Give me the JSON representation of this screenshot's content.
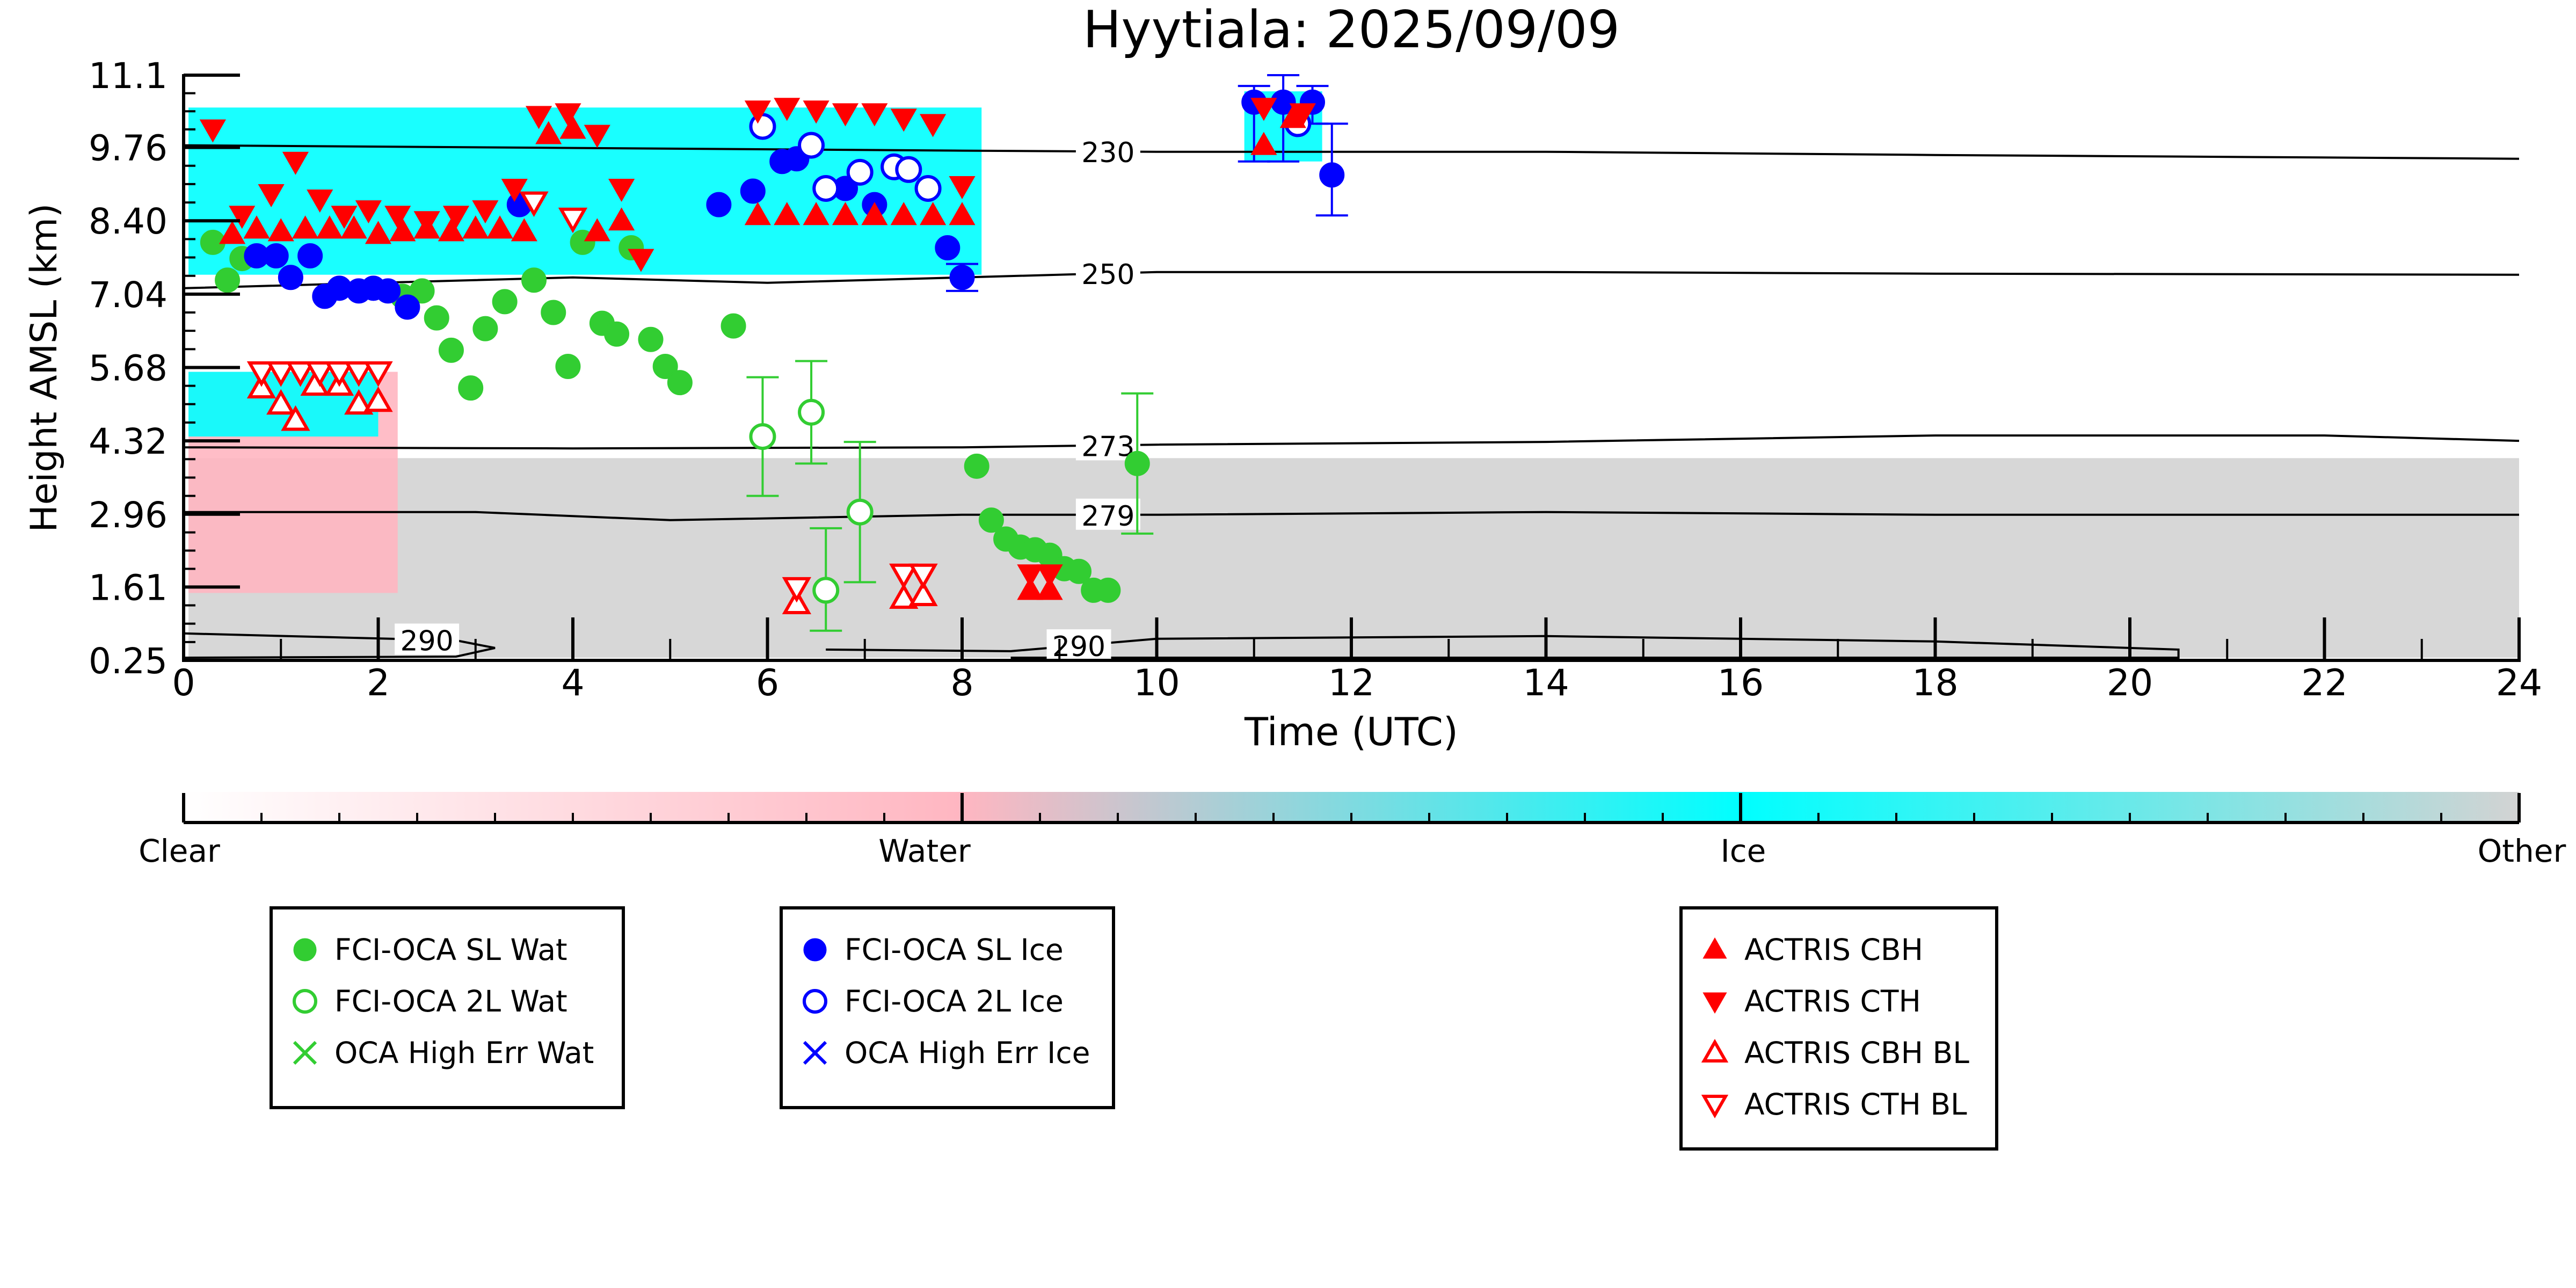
{
  "chart_data": {
    "type": "scatter",
    "title": "Hyytiala: 2025/09/09",
    "xlabel": "Time (UTC)",
    "ylabel": "Height AMSL (km)",
    "xlim": [
      0,
      24
    ],
    "ylim": [
      0.25,
      11.1
    ],
    "x_ticks": [
      0,
      2,
      4,
      6,
      8,
      10,
      12,
      14,
      16,
      18,
      20,
      22,
      24
    ],
    "y_ticks": [
      0.25,
      1.61,
      2.96,
      4.32,
      5.68,
      7.04,
      8.4,
      9.76,
      11.1
    ],
    "y_tick_labels": [
      "0.25",
      "1.61",
      "2.96",
      "4.32",
      "5.68",
      "7.04",
      "8.40",
      "9.76",
      "11.1"
    ],
    "grid": false,
    "colorbar": {
      "labels": [
        "Clear",
        "Water",
        "Ice",
        "Other"
      ],
      "colors": [
        "#ffffff",
        "#ffb6c1",
        "#00ffff",
        "#d3d3d3"
      ]
    },
    "background_classes": [
      {
        "class": "Other",
        "color": "#d3d3d3",
        "x": [
          0.05,
          24.0
        ],
        "y": [
          0.3,
          4.0
        ]
      },
      {
        "class": "Water",
        "color": "#ffb6c1",
        "x": [
          0.05,
          2.2
        ],
        "y": [
          1.5,
          5.6
        ]
      },
      {
        "class": "Ice",
        "color": "#00ffff",
        "x": [
          0.05,
          8.2
        ],
        "y": [
          7.4,
          10.5
        ]
      },
      {
        "class": "Ice",
        "color": "#00ffff",
        "x": [
          0.05,
          2.0
        ],
        "y": [
          4.4,
          5.6
        ]
      },
      {
        "class": "Ice",
        "color": "#00ffff",
        "x": [
          10.9,
          11.7
        ],
        "y": [
          9.5,
          10.8
        ]
      }
    ],
    "isotherms": [
      {
        "label": "230",
        "label_x": 9.5,
        "points": [
          [
            0,
            9.8
          ],
          [
            4,
            9.75
          ],
          [
            8,
            9.7
          ],
          [
            10,
            9.68
          ],
          [
            14,
            9.68
          ],
          [
            18,
            9.62
          ],
          [
            24,
            9.55
          ]
        ]
      },
      {
        "label": "250",
        "label_x": 9.5,
        "points": [
          [
            0,
            7.15
          ],
          [
            4,
            7.35
          ],
          [
            6,
            7.25
          ],
          [
            8,
            7.35
          ],
          [
            10,
            7.45
          ],
          [
            14,
            7.45
          ],
          [
            18,
            7.42
          ],
          [
            24,
            7.4
          ]
        ]
      },
      {
        "label": "273",
        "label_x": 9.5,
        "points": [
          [
            0,
            4.2
          ],
          [
            4,
            4.18
          ],
          [
            8,
            4.2
          ],
          [
            10,
            4.25
          ],
          [
            14,
            4.3
          ],
          [
            18,
            4.42
          ],
          [
            22,
            4.42
          ],
          [
            24,
            4.32
          ]
        ]
      },
      {
        "label": "279",
        "label_x": 9.5,
        "points": [
          [
            0,
            3.0
          ],
          [
            3,
            3.0
          ],
          [
            5,
            2.85
          ],
          [
            8,
            2.95
          ],
          [
            10,
            2.95
          ],
          [
            14,
            3.0
          ],
          [
            18,
            2.95
          ],
          [
            24,
            2.95
          ]
        ]
      },
      {
        "label": "290",
        "label_x": 2.5,
        "points": [
          [
            0,
            0.75
          ],
          [
            1.5,
            0.68
          ],
          [
            2.8,
            0.62
          ],
          [
            3.2,
            0.48
          ],
          [
            2.8,
            0.32
          ],
          [
            0,
            0.3
          ]
        ]
      },
      {
        "label": "290",
        "label_x": 9.2,
        "points": [
          [
            6.6,
            0.45
          ],
          [
            8.5,
            0.42
          ],
          [
            10,
            0.65
          ],
          [
            14,
            0.7
          ],
          [
            18,
            0.6
          ],
          [
            20.5,
            0.45
          ],
          [
            20.5,
            0.3
          ],
          [
            8.5,
            0.3
          ]
        ]
      }
    ],
    "series": [
      {
        "name": "FCI-OCA SL Wat",
        "marker": "circle",
        "filled": true,
        "color": "#32cd32",
        "points": [
          [
            0.3,
            8.0
          ],
          [
            0.45,
            7.3
          ],
          [
            0.6,
            7.7
          ],
          [
            2.25,
            7.0
          ],
          [
            2.45,
            7.1
          ],
          [
            2.6,
            6.6
          ],
          [
            2.75,
            6.0
          ],
          [
            2.95,
            5.3
          ],
          [
            3.1,
            6.4
          ],
          [
            3.3,
            6.9
          ],
          [
            3.6,
            7.3
          ],
          [
            3.8,
            6.7
          ],
          [
            3.95,
            5.7
          ],
          [
            4.1,
            8.0
          ],
          [
            4.3,
            6.5
          ],
          [
            4.45,
            6.3
          ],
          [
            4.6,
            7.9
          ],
          [
            4.8,
            6.2
          ],
          [
            4.95,
            5.7
          ],
          [
            5.1,
            5.4
          ],
          [
            5.65,
            6.45
          ],
          [
            8.15,
            3.85
          ],
          [
            8.3,
            2.85
          ],
          [
            8.45,
            2.5
          ],
          [
            8.6,
            2.35
          ],
          [
            8.75,
            2.3
          ],
          [
            8.9,
            2.2
          ],
          [
            9.05,
            1.95
          ],
          [
            9.2,
            1.9
          ],
          [
            9.35,
            1.55
          ],
          [
            9.5,
            1.55
          ],
          [
            9.8,
            3.9
          ]
        ]
      },
      {
        "name": "FCI-OCA 2L Wat",
        "marker": "circle",
        "filled": false,
        "color": "#32cd32",
        "points": [
          [
            5.95,
            4.4
          ],
          [
            6.45,
            4.85
          ],
          [
            6.6,
            1.55
          ],
          [
            6.95,
            3.0
          ]
        ]
      },
      {
        "name": "OCA High Err Wat",
        "marker": "x",
        "filled": true,
        "color": "#32cd32",
        "points": []
      },
      {
        "name": "FCI-OCA SL Ice",
        "marker": "circle",
        "filled": true,
        "color": "#0000ff",
        "points": [
          [
            0.75,
            7.75
          ],
          [
            0.95,
            7.75
          ],
          [
            1.1,
            7.35
          ],
          [
            1.3,
            7.75
          ],
          [
            1.45,
            7.0
          ],
          [
            1.6,
            7.15
          ],
          [
            1.8,
            7.1
          ],
          [
            1.95,
            7.15
          ],
          [
            2.1,
            7.1
          ],
          [
            2.3,
            6.8
          ],
          [
            3.45,
            8.7
          ],
          [
            5.5,
            8.7
          ],
          [
            5.85,
            8.95
          ],
          [
            6.15,
            9.5
          ],
          [
            6.3,
            9.55
          ],
          [
            6.8,
            9.0
          ],
          [
            7.1,
            8.7
          ],
          [
            7.85,
            7.9
          ],
          [
            8.0,
            7.35
          ],
          [
            11.0,
            10.6
          ],
          [
            11.3,
            10.6
          ],
          [
            11.6,
            10.6
          ],
          [
            11.8,
            9.25
          ]
        ]
      },
      {
        "name": "FCI-OCA 2L Ice",
        "marker": "circle",
        "filled": false,
        "color": "#0000ff",
        "points": [
          [
            5.95,
            10.15
          ],
          [
            6.45,
            9.8
          ],
          [
            6.6,
            9.0
          ],
          [
            6.95,
            9.3
          ],
          [
            7.3,
            9.4
          ],
          [
            7.45,
            9.35
          ],
          [
            7.65,
            9.0
          ],
          [
            11.45,
            10.2
          ]
        ]
      },
      {
        "name": "OCA High Err Ice",
        "marker": "x",
        "filled": true,
        "color": "#0000ff",
        "points": []
      },
      {
        "name": "ACTRIS CBH",
        "marker": "triangle-up",
        "filled": true,
        "color": "#ff0000",
        "points": [
          [
            0.5,
            8.15
          ],
          [
            0.75,
            8.25
          ],
          [
            1.0,
            8.2
          ],
          [
            1.25,
            8.25
          ],
          [
            1.5,
            8.25
          ],
          [
            1.75,
            8.25
          ],
          [
            2.0,
            8.15
          ],
          [
            2.25,
            8.2
          ],
          [
            2.5,
            8.25
          ],
          [
            2.75,
            8.2
          ],
          [
            3.0,
            8.25
          ],
          [
            3.25,
            8.25
          ],
          [
            3.5,
            8.2
          ],
          [
            3.75,
            10.0
          ],
          [
            4.0,
            10.1
          ],
          [
            4.25,
            8.2
          ],
          [
            4.5,
            8.4
          ],
          [
            5.9,
            8.5
          ],
          [
            6.2,
            8.5
          ],
          [
            6.5,
            8.5
          ],
          [
            6.8,
            8.5
          ],
          [
            7.1,
            8.5
          ],
          [
            7.4,
            8.5
          ],
          [
            7.7,
            8.5
          ],
          [
            8.0,
            8.5
          ],
          [
            8.7,
            1.55
          ],
          [
            8.9,
            1.55
          ],
          [
            11.1,
            9.8
          ],
          [
            11.4,
            10.3
          ]
        ]
      },
      {
        "name": "ACTRIS CTH",
        "marker": "triangle-down",
        "filled": true,
        "color": "#ff0000",
        "points": [
          [
            0.3,
            10.1
          ],
          [
            0.6,
            8.5
          ],
          [
            0.9,
            8.9
          ],
          [
            1.15,
            9.5
          ],
          [
            1.4,
            8.8
          ],
          [
            1.65,
            8.5
          ],
          [
            1.9,
            8.6
          ],
          [
            2.2,
            8.5
          ],
          [
            2.5,
            8.4
          ],
          [
            2.8,
            8.5
          ],
          [
            3.1,
            8.6
          ],
          [
            3.4,
            9.0
          ],
          [
            3.65,
            10.35
          ],
          [
            3.95,
            10.4
          ],
          [
            4.25,
            10.0
          ],
          [
            4.5,
            9.0
          ],
          [
            4.7,
            7.7
          ],
          [
            5.9,
            10.45
          ],
          [
            6.2,
            10.5
          ],
          [
            6.5,
            10.45
          ],
          [
            6.8,
            10.4
          ],
          [
            7.1,
            10.4
          ],
          [
            7.4,
            10.3
          ],
          [
            7.7,
            10.2
          ],
          [
            8.0,
            9.05
          ],
          [
            8.7,
            1.85
          ],
          [
            8.9,
            1.85
          ],
          [
            11.1,
            10.5
          ],
          [
            11.5,
            10.4
          ]
        ]
      },
      {
        "name": "ACTRIS CBH BL",
        "marker": "triangle-up",
        "filled": false,
        "color": "#ff0000",
        "points": [
          [
            0.8,
            5.3
          ],
          [
            1.0,
            5.0
          ],
          [
            1.15,
            4.7
          ],
          [
            1.35,
            5.35
          ],
          [
            1.6,
            5.35
          ],
          [
            1.8,
            5.0
          ],
          [
            2.0,
            5.05
          ],
          [
            6.3,
            1.3
          ],
          [
            7.4,
            1.4
          ],
          [
            7.6,
            1.45
          ]
        ]
      },
      {
        "name": "ACTRIS CTH BL",
        "marker": "triangle-down",
        "filled": false,
        "color": "#ff0000",
        "points": [
          [
            0.8,
            5.6
          ],
          [
            1.0,
            5.6
          ],
          [
            1.2,
            5.6
          ],
          [
            1.4,
            5.6
          ],
          [
            1.6,
            5.6
          ],
          [
            1.8,
            5.6
          ],
          [
            2.0,
            5.6
          ],
          [
            3.6,
            8.75
          ],
          [
            4.0,
            8.45
          ],
          [
            6.3,
            1.6
          ],
          [
            7.4,
            1.85
          ],
          [
            7.6,
            1.85
          ]
        ]
      }
    ],
    "error_bars": [
      {
        "series": "FCI-OCA 2L Wat",
        "x": 5.95,
        "low": 3.3,
        "high": 5.5
      },
      {
        "series": "FCI-OCA 2L Wat",
        "x": 6.45,
        "low": 3.9,
        "high": 5.8
      },
      {
        "series": "FCI-OCA 2L Wat",
        "x": 6.6,
        "low": 0.8,
        "high": 2.7
      },
      {
        "series": "FCI-OCA 2L Wat",
        "x": 6.95,
        "low": 1.7,
        "high": 4.3
      },
      {
        "series": "FCI-OCA SL Wat",
        "x": 9.8,
        "low": 2.6,
        "high": 5.2
      },
      {
        "series": "FCI-OCA SL Ice",
        "x": 11.0,
        "low": 9.5,
        "high": 10.9
      },
      {
        "series": "FCI-OCA SL Ice",
        "x": 11.3,
        "low": 9.5,
        "high": 11.1
      },
      {
        "series": "FCI-OCA SL Ice",
        "x": 11.6,
        "low": 10.2,
        "high": 10.9
      },
      {
        "series": "FCI-OCA SL Ice",
        "x": 11.8,
        "low": 8.5,
        "high": 10.2
      },
      {
        "series": "FCI-OCA SL Ice",
        "x": 8.0,
        "low": 7.1,
        "high": 7.6
      }
    ],
    "legends": [
      {
        "entries": [
          "FCI-OCA SL Wat",
          "FCI-OCA 2L Wat",
          "OCA High Err Wat"
        ]
      },
      {
        "entries": [
          "FCI-OCA SL Ice",
          "FCI-OCA 2L Ice",
          "OCA High Err Ice"
        ]
      },
      {
        "entries": [
          "ACTRIS CBH",
          "ACTRIS CTH",
          "ACTRIS CBH BL",
          "ACTRIS CTH BL"
        ]
      }
    ]
  }
}
